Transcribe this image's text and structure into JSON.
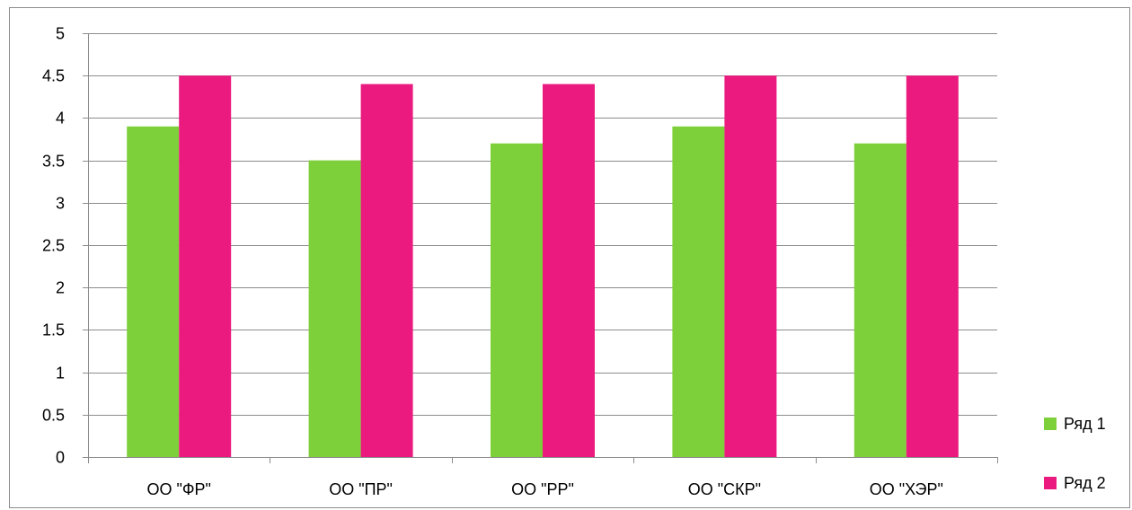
{
  "chart_data": {
    "type": "bar",
    "title": "",
    "xlabel": "",
    "ylabel": "",
    "categories": [
      "ОО \"ФР\"",
      "ОО \"ПР\"",
      "ОО \"РР\"",
      "ОО \"СКР\"",
      "ОО \"ХЭР\""
    ],
    "series": [
      {
        "name": "Ряд 1",
        "values": [
          3.9,
          3.5,
          3.7,
          3.9,
          3.7
        ],
        "color": "#7ed03b"
      },
      {
        "name": "Ряд 2",
        "values": [
          4.5,
          4.4,
          4.4,
          4.5,
          4.5
        ],
        "color": "#ea1a7f"
      }
    ],
    "ylim": [
      0,
      5
    ],
    "yticks": [
      "0",
      "0.5",
      "1",
      "1.5",
      "2",
      "2.5",
      "3",
      "3.5",
      "4",
      "4.5",
      "5"
    ],
    "ytick_values": [
      0,
      0.5,
      1,
      1.5,
      2,
      2.5,
      3,
      3.5,
      4,
      4.5,
      5
    ],
    "grid": true,
    "legend_position": "right-bottom",
    "colors": {
      "gridline": "#8c8c8c",
      "axis": "#8c8c8c",
      "frame": "#8c8c8c"
    }
  }
}
